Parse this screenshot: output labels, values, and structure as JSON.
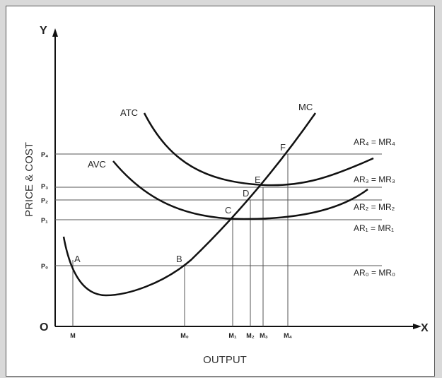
{
  "axes": {
    "y_end": "Y",
    "x_end": "X",
    "origin": "O",
    "y_label": "PRICE & COST",
    "x_label": "OUTPUT"
  },
  "price_ticks": [
    "P₄",
    "P₃",
    "P₂",
    "P₁",
    "P₀"
  ],
  "output_ticks": [
    "M",
    "M₀",
    "M₁",
    "M₂",
    "M₃",
    "M₄"
  ],
  "curves": {
    "atc": "ATC",
    "avc": "AVC",
    "mc": "MC"
  },
  "revenue_lines": [
    "AR₄ = MR₄",
    "AR₃ = MR₃",
    "AR₂ = MR₂",
    "AR₁ = MR₁",
    "AR₀ = MR₀"
  ],
  "points": [
    "A",
    "B",
    "C",
    "D",
    "E",
    "F"
  ],
  "colors": {
    "background": "#d9d9d9",
    "panel": "#ffffff",
    "curve": "#111111",
    "guide": "#555555"
  }
}
